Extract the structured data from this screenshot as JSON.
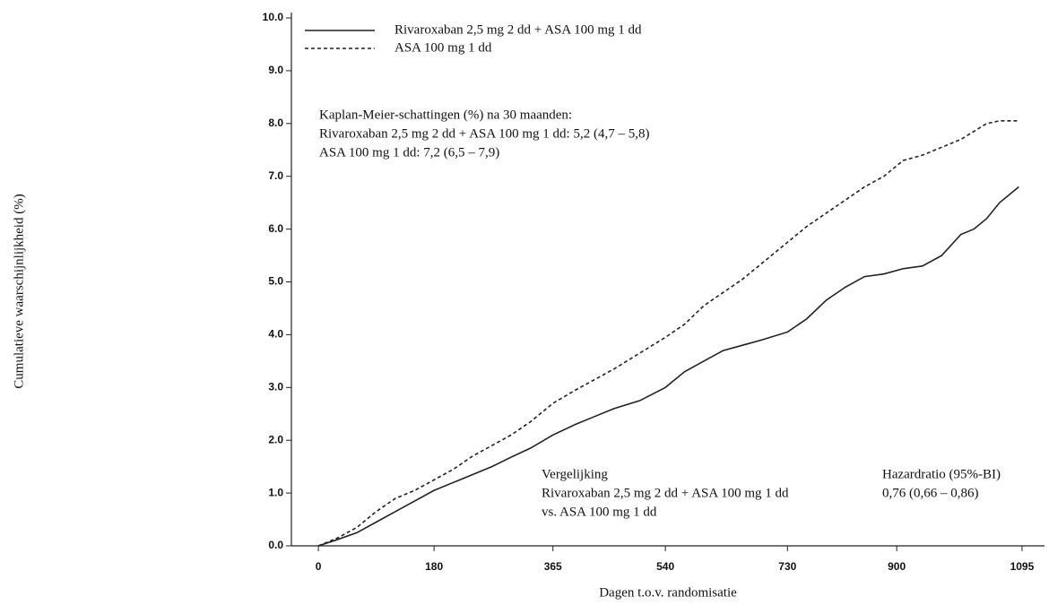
{
  "chart_data": {
    "type": "line",
    "y_label": "Cumulatieve waarschijnlijkheid (%)",
    "x_label": "Dagen t.o.v. randomisatie",
    "xlim": [
      -42,
      1130
    ],
    "ylim": [
      0,
      10
    ],
    "xticks": [
      0,
      180,
      365,
      540,
      730,
      900,
      1095
    ],
    "yticks": [
      {
        "value": 0,
        "label": "0.0"
      },
      {
        "value": 1,
        "label": "1.0"
      },
      {
        "value": 2,
        "label": "2.0"
      },
      {
        "value": 3,
        "label": "3.0"
      },
      {
        "value": 4,
        "label": "4.0"
      },
      {
        "value": 5,
        "label": "5.0"
      },
      {
        "value": 6,
        "label": "6.0"
      },
      {
        "value": 7,
        "label": "7.0"
      },
      {
        "value": 8,
        "label": "8.0"
      },
      {
        "value": 9,
        "label": "9.0"
      },
      {
        "value": 10,
        "label": "10.0"
      }
    ],
    "x": [
      0,
      30,
      60,
      90,
      120,
      150,
      180,
      210,
      240,
      270,
      300,
      330,
      365,
      400,
      430,
      460,
      500,
      540,
      570,
      600,
      630,
      660,
      690,
      730,
      760,
      790,
      820,
      850,
      880,
      910,
      940,
      970,
      1000,
      1020,
      1040,
      1060,
      1090
    ],
    "series": [
      {
        "name": "Rivaroxaban 2,5 mg 2 dd + ASA 100 mg 1 dd",
        "color": "#222222",
        "dash": "solid",
        "values": [
          0,
          0.12,
          0.25,
          0.45,
          0.65,
          0.85,
          1.05,
          1.2,
          1.35,
          1.5,
          1.68,
          1.85,
          2.1,
          2.3,
          2.45,
          2.6,
          2.75,
          3.0,
          3.3,
          3.5,
          3.7,
          3.8,
          3.9,
          4.05,
          4.3,
          4.65,
          4.9,
          5.1,
          5.15,
          5.25,
          5.3,
          5.5,
          5.9,
          6.0,
          6.2,
          6.5,
          6.8
        ]
      },
      {
        "name": "ASA 100 mg 1 dd",
        "color": "#222222",
        "dash": "dashed",
        "values": [
          0,
          0.15,
          0.35,
          0.65,
          0.9,
          1.05,
          1.25,
          1.45,
          1.7,
          1.9,
          2.1,
          2.35,
          2.7,
          2.95,
          3.15,
          3.35,
          3.65,
          3.95,
          4.2,
          4.55,
          4.8,
          5.05,
          5.35,
          5.75,
          6.05,
          6.3,
          6.55,
          6.8,
          7.0,
          7.3,
          7.4,
          7.55,
          7.7,
          7.85,
          8.0,
          8.05,
          8.05
        ]
      }
    ],
    "annotations": {
      "km": [
        "Kaplan-Meier-schattingen (%) na 30 maanden:",
        "Rivaroxaban 2,5 mg 2 dd + ASA 100 mg 1 dd: 5,2 (4,7 – 5,8)",
        "ASA 100 mg 1 dd: 7,2 (6,5 – 7,9)"
      ],
      "comparison": [
        "Vergelijking",
        "Rivaroxaban 2,5 mg 2 dd + ASA 100 mg 1 dd",
        "vs. ASA 100 mg 1 dd"
      ],
      "hazard": [
        "Hazardratio (95%-BI)",
        "0,76 (0,66 – 0,86)"
      ]
    }
  }
}
